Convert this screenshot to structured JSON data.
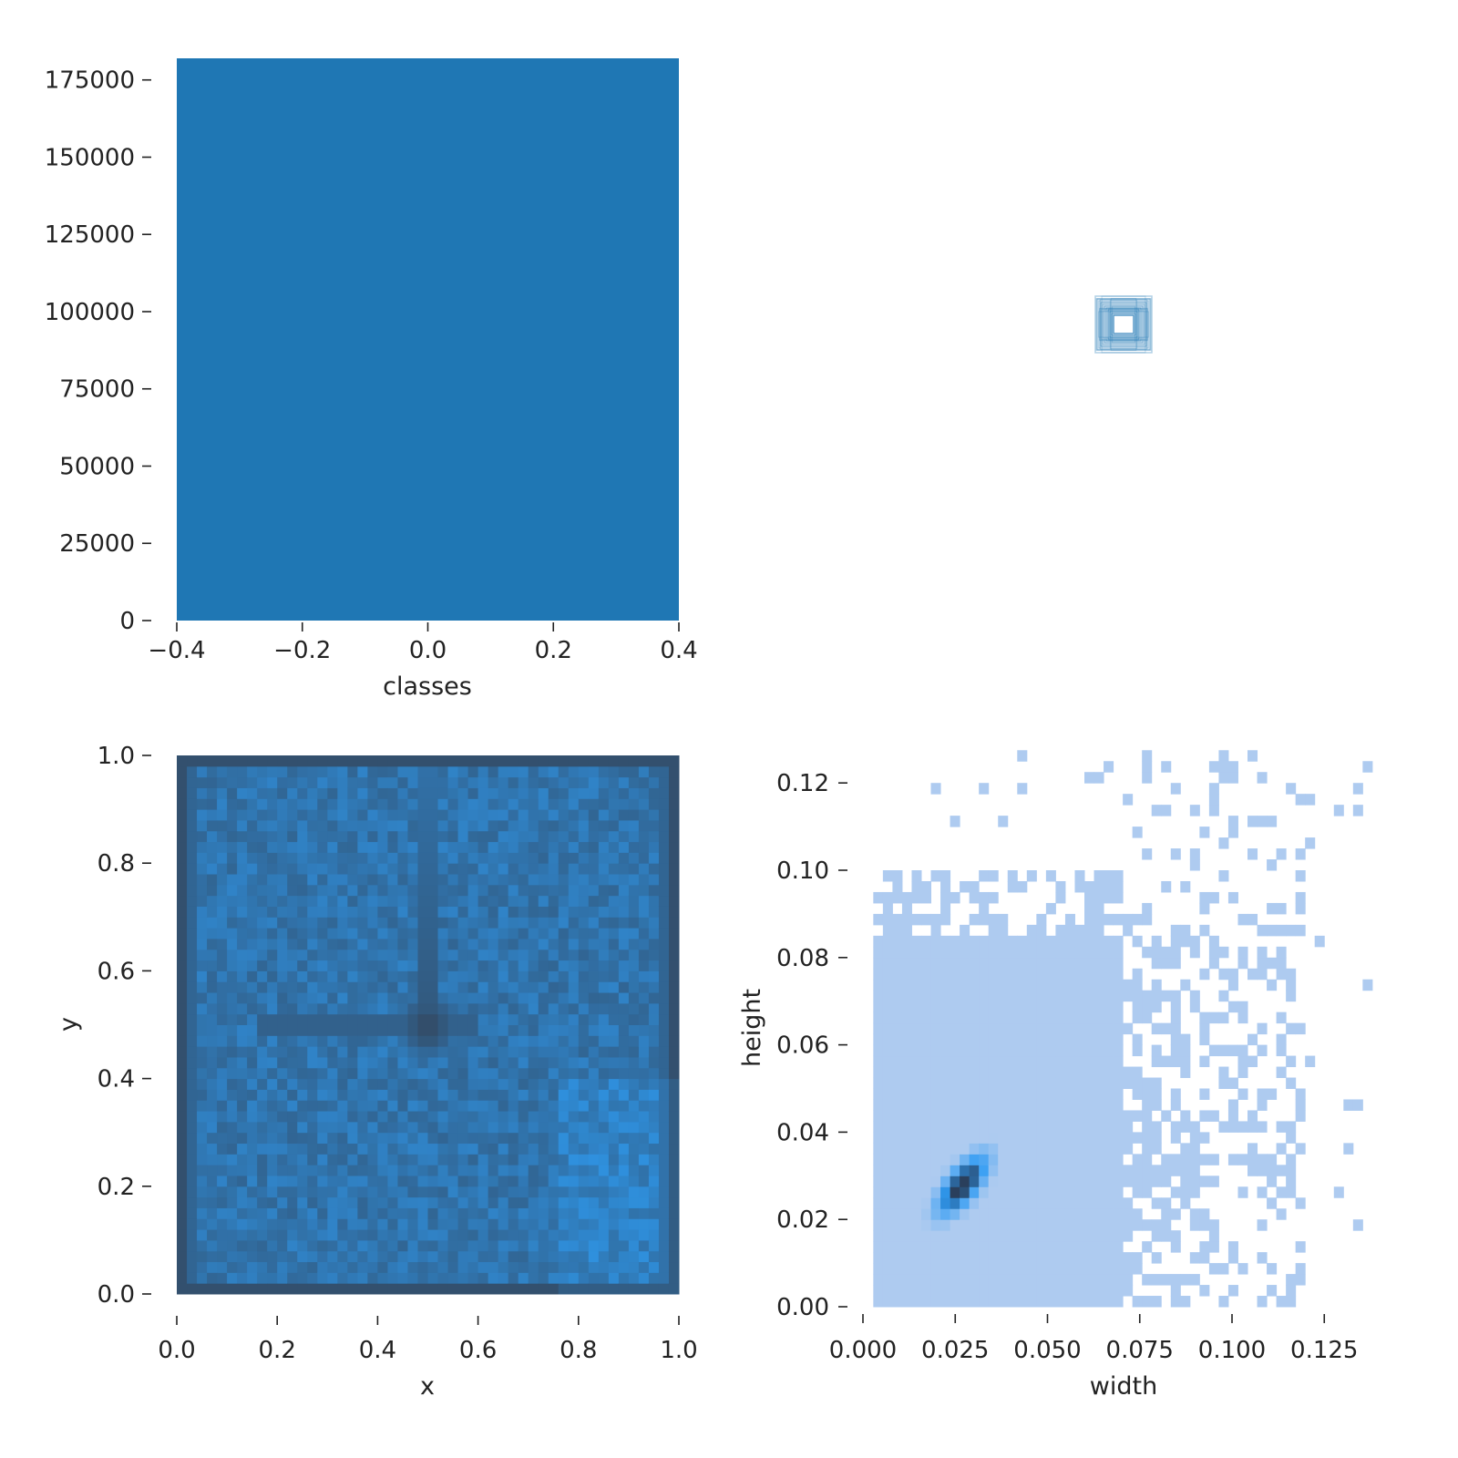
{
  "colors": {
    "bar": "#1f77b4",
    "heat_light": "#2e9df4",
    "heat_dark": "#33475f",
    "hist_light": "#aecbf0",
    "hist_mid": "#2f9bf3",
    "hist_dark": "#2a3f5c",
    "text": "#222222"
  },
  "chart_data": [
    {
      "type": "bar",
      "xlabel": "classes",
      "ylabel": "",
      "categories": [
        "0"
      ],
      "x": [
        0
      ],
      "values": [
        182000
      ],
      "bar_width": 0.8,
      "xlim": [
        -0.4,
        0.4
      ],
      "ylim": [
        0,
        182000
      ],
      "xticks": [
        -0.4,
        -0.2,
        0.0,
        0.2,
        0.4
      ],
      "xtick_labels": [
        "−0.4",
        "−0.2",
        "0.0",
        "0.2",
        "0.4"
      ],
      "yticks": [
        0,
        25000,
        50000,
        75000,
        100000,
        125000,
        150000,
        175000
      ],
      "ytick_labels": [
        "0",
        "25000",
        "50000",
        "75000",
        "100000",
        "125000",
        "150000",
        "175000"
      ],
      "grid": false,
      "legend": "none"
    },
    {
      "type": "scatter",
      "description": "box outlines overlay (normalized box sizes centered at a common point)",
      "xlabel": "",
      "ylabel": "",
      "center": [
        0.5,
        0.5
      ],
      "box_sizes": [
        [
          0.062,
          0.062
        ],
        [
          0.058,
          0.056
        ],
        [
          0.054,
          0.052
        ],
        [
          0.05,
          0.048
        ],
        [
          0.046,
          0.044
        ],
        [
          0.042,
          0.04
        ],
        [
          0.038,
          0.036
        ],
        [
          0.034,
          0.032
        ],
        [
          0.03,
          0.028
        ],
        [
          0.026,
          0.024
        ],
        [
          0.022,
          0.02
        ]
      ],
      "grid": false,
      "legend": "none"
    },
    {
      "type": "heatmap",
      "xlabel": "x",
      "ylabel": "y",
      "xlim": [
        0,
        1
      ],
      "ylim": [
        0,
        1
      ],
      "xticks": [
        0.0,
        0.2,
        0.4,
        0.6,
        0.8,
        1.0
      ],
      "xtick_labels": [
        "0.0",
        "0.2",
        "0.4",
        "0.6",
        "0.8",
        "1.0"
      ],
      "yticks": [
        0.0,
        0.2,
        0.4,
        0.6,
        0.8,
        1.0
      ],
      "ytick_labels": [
        "0.0",
        "0.2",
        "0.4",
        "0.6",
        "0.8",
        "1.0"
      ],
      "bins": [
        50,
        50
      ],
      "hotspots": [
        {
          "x": 0.5,
          "y": 0.5,
          "weight": 1.0
        },
        {
          "x": 0.5,
          "y": 0.75,
          "weight": 0.55
        }
      ],
      "grid": false,
      "legend": "none"
    },
    {
      "type": "heatmap",
      "xlabel": "width",
      "ylabel": "height",
      "xlim": [
        0,
        0.14
      ],
      "ylim": [
        0,
        0.125
      ],
      "xticks": [
        0.0,
        0.025,
        0.05,
        0.075,
        0.1,
        0.125
      ],
      "xtick_labels": [
        "0.000",
        "0.025",
        "0.050",
        "0.075",
        "0.100",
        "0.125"
      ],
      "yticks": [
        0.0,
        0.02,
        0.04,
        0.06,
        0.08,
        0.1,
        0.12
      ],
      "ytick_labels": [
        "0.00",
        "0.02",
        "0.04",
        "0.06",
        "0.08",
        "0.10",
        "0.12"
      ],
      "bin_width": 0.0026,
      "bin_height": 0.0025,
      "dense_region": {
        "x": [
          0.0025,
          0.07
        ],
        "y": [
          0.0,
          0.1
        ]
      },
      "peak": {
        "x": 0.027,
        "y": 0.028
      },
      "grid": false,
      "legend": "none"
    }
  ]
}
